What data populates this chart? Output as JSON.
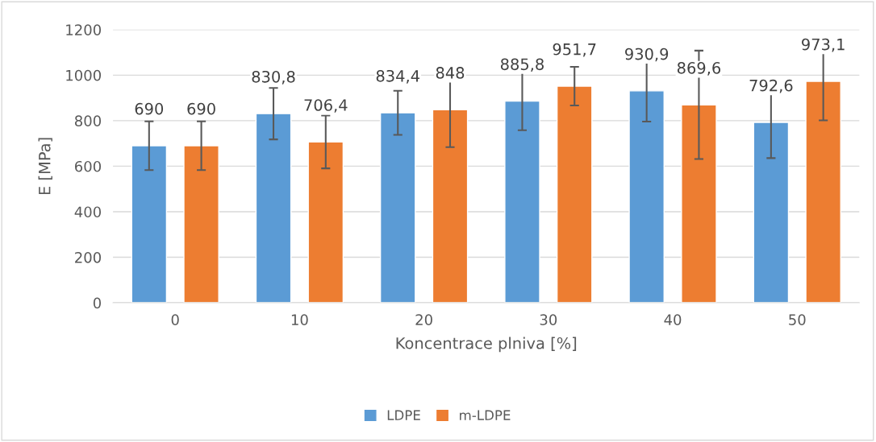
{
  "chart_data": {
    "type": "bar",
    "xlabel": "Koncentrace plniva [%]",
    "ylabel": "E [MPa]",
    "categories": [
      "0",
      "10",
      "20",
      "30",
      "40",
      "50"
    ],
    "series": [
      {
        "name": "LDPE",
        "color": "#5b9bd5",
        "values": [
          690,
          830.8,
          834.4,
          885.8,
          930.9,
          792.6
        ],
        "errors": [
          107,
          113,
          97,
          128,
          135,
          157
        ],
        "value_labels": [
          "690",
          "830,8",
          "834,4",
          "885,8",
          "930,9",
          "792,6"
        ]
      },
      {
        "name": "m-LDPE",
        "color": "#ed7d31",
        "values": [
          690,
          706.4,
          848,
          951.7,
          869.6,
          973.1
        ],
        "errors": [
          107,
          116,
          164,
          85,
          238,
          172
        ],
        "value_labels": [
          "690",
          "706,4",
          "848",
          "951,7",
          "869,6",
          "973,1"
        ]
      }
    ],
    "ylim": [
      0,
      1200
    ],
    "yticks": [
      0,
      200,
      400,
      600,
      800,
      1000,
      1200
    ],
    "grid": "y",
    "legend": "bottom"
  }
}
